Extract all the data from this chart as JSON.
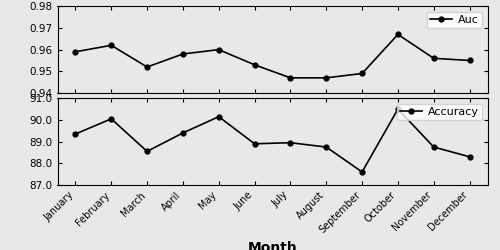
{
  "months": [
    "January",
    "February",
    "March",
    "April",
    "May",
    "June",
    "July",
    "August",
    "September",
    "October",
    "November",
    "December"
  ],
  "auc_values": [
    0.959,
    0.962,
    0.952,
    0.958,
    0.96,
    0.953,
    0.947,
    0.947,
    0.949,
    0.967,
    0.956,
    0.955
  ],
  "acc_values": [
    89.35,
    90.05,
    88.55,
    89.4,
    90.15,
    88.9,
    88.95,
    88.75,
    87.6,
    90.5,
    88.75,
    88.3
  ],
  "auc_ylim": [
    0.94,
    0.98
  ],
  "acc_ylim": [
    87.0,
    91.0
  ],
  "auc_yticks": [
    0.94,
    0.95,
    0.96,
    0.97,
    0.98
  ],
  "acc_yticks": [
    87.0,
    88.0,
    89.0,
    90.0,
    91.0
  ],
  "xlabel": "Month",
  "auc_label": "Auc",
  "acc_label": "Accuracy",
  "line_color": "black",
  "marker": "o",
  "markersize": 3.5,
  "linewidth": 1.2,
  "fig_facecolor": "#e8e8e8"
}
